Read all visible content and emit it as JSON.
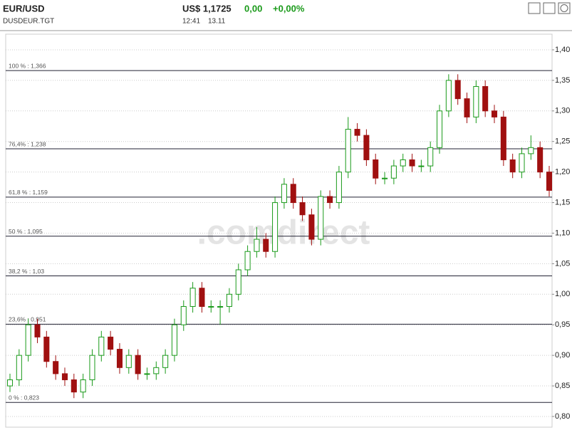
{
  "header": {
    "symbol": "EUR/USD",
    "code": "DUSDEUR.TGT",
    "price": "US$ 1,1725",
    "change": "0,00",
    "change_pct": "+0,00%",
    "time": "12:41",
    "date": "13.11"
  },
  "chart_data": {
    "type": "candlestick",
    "watermark": ".comdirect",
    "up_color": "#1a9a1a",
    "down_color": "#a01010",
    "ylim": [
      0.7825,
      1.4256
    ],
    "yticks": [
      {
        "value": 0.8,
        "label": "0,80"
      },
      {
        "value": 0.85,
        "label": "0,85"
      },
      {
        "value": 0.9,
        "label": "0,90"
      },
      {
        "value": 0.95,
        "label": "0,95"
      },
      {
        "value": 1.0,
        "label": "1,00"
      },
      {
        "value": 1.05,
        "label": "1,05"
      },
      {
        "value": 1.1,
        "label": "1,10"
      },
      {
        "value": 1.15,
        "label": "1,15"
      },
      {
        "value": 1.2,
        "label": "1,20"
      },
      {
        "value": 1.25,
        "label": "1,25"
      },
      {
        "value": 1.3,
        "label": "1,30"
      },
      {
        "value": 1.35,
        "label": "1,35"
      },
      {
        "value": 1.4,
        "label": "1,40"
      }
    ],
    "grid": true,
    "levels": [
      {
        "value": 1.366,
        "label": "100 % : 1,366"
      },
      {
        "value": 1.238,
        "label": "76,4% : 1,238"
      },
      {
        "value": 1.159,
        "label": "61,8 % : 1,159"
      },
      {
        "value": 1.095,
        "label": "50 % : 1,095"
      },
      {
        "value": 1.03,
        "label": "38,2 % : 1,03"
      },
      {
        "value": 0.951,
        "label": "23,6% : 0,951"
      },
      {
        "value": 0.823,
        "label": "0 % : 0,823"
      }
    ],
    "open": [
      0.85,
      0.86,
      0.9,
      0.95,
      0.93,
      0.89,
      0.87,
      0.86,
      0.84,
      0.86,
      0.9,
      0.93,
      0.91,
      0.88,
      0.9,
      0.87,
      0.87,
      0.88,
      0.9,
      0.95,
      0.98,
      1.01,
      0.98,
      0.98,
      0.98,
      1.0,
      1.04,
      1.07,
      1.09,
      1.07,
      1.15,
      1.18,
      1.15,
      1.13,
      1.09,
      1.16,
      1.15,
      1.2,
      1.27,
      1.26,
      1.22,
      1.19,
      1.19,
      1.21,
      1.22,
      1.21,
      1.21,
      1.24,
      1.3,
      1.35,
      1.32,
      1.29,
      1.34,
      1.3,
      1.29,
      1.22,
      1.2,
      1.23,
      1.24,
      1.2
    ],
    "high": [
      0.87,
      0.91,
      0.96,
      0.96,
      0.94,
      0.9,
      0.88,
      0.87,
      0.87,
      0.91,
      0.94,
      0.94,
      0.92,
      0.91,
      0.91,
      0.88,
      0.89,
      0.91,
      0.96,
      0.99,
      1.02,
      1.02,
      0.99,
      0.99,
      1.01,
      1.05,
      1.08,
      1.11,
      1.1,
      1.16,
      1.19,
      1.19,
      1.16,
      1.14,
      1.17,
      1.17,
      1.21,
      1.29,
      1.28,
      1.27,
      1.23,
      1.2,
      1.22,
      1.23,
      1.23,
      1.22,
      1.25,
      1.31,
      1.36,
      1.36,
      1.33,
      1.35,
      1.35,
      1.31,
      1.3,
      1.23,
      1.24,
      1.26,
      1.25,
      1.21
    ],
    "low": [
      0.84,
      0.85,
      0.89,
      0.92,
      0.88,
      0.86,
      0.85,
      0.83,
      0.83,
      0.85,
      0.89,
      0.9,
      0.87,
      0.87,
      0.86,
      0.86,
      0.86,
      0.87,
      0.89,
      0.94,
      0.97,
      0.97,
      0.97,
      0.95,
      0.97,
      0.99,
      1.03,
      1.06,
      1.06,
      1.06,
      1.14,
      1.14,
      1.12,
      1.08,
      1.08,
      1.14,
      1.14,
      1.19,
      1.25,
      1.21,
      1.18,
      1.18,
      1.18,
      1.2,
      1.2,
      1.2,
      1.2,
      1.23,
      1.29,
      1.31,
      1.28,
      1.28,
      1.29,
      1.28,
      1.21,
      1.19,
      1.19,
      1.22,
      1.19,
      1.16
    ],
    "close": [
      0.86,
      0.9,
      0.95,
      0.93,
      0.89,
      0.87,
      0.86,
      0.84,
      0.86,
      0.9,
      0.93,
      0.91,
      0.88,
      0.9,
      0.87,
      0.87,
      0.88,
      0.9,
      0.95,
      0.98,
      1.01,
      0.98,
      0.98,
      0.98,
      1.0,
      1.04,
      1.07,
      1.09,
      1.07,
      1.15,
      1.18,
      1.15,
      1.13,
      1.09,
      1.16,
      1.15,
      1.2,
      1.27,
      1.26,
      1.22,
      1.19,
      1.19,
      1.21,
      1.22,
      1.21,
      1.21,
      1.24,
      1.3,
      1.35,
      1.32,
      1.29,
      1.34,
      1.3,
      1.29,
      1.22,
      1.2,
      1.23,
      1.24,
      1.2,
      1.17
    ]
  }
}
